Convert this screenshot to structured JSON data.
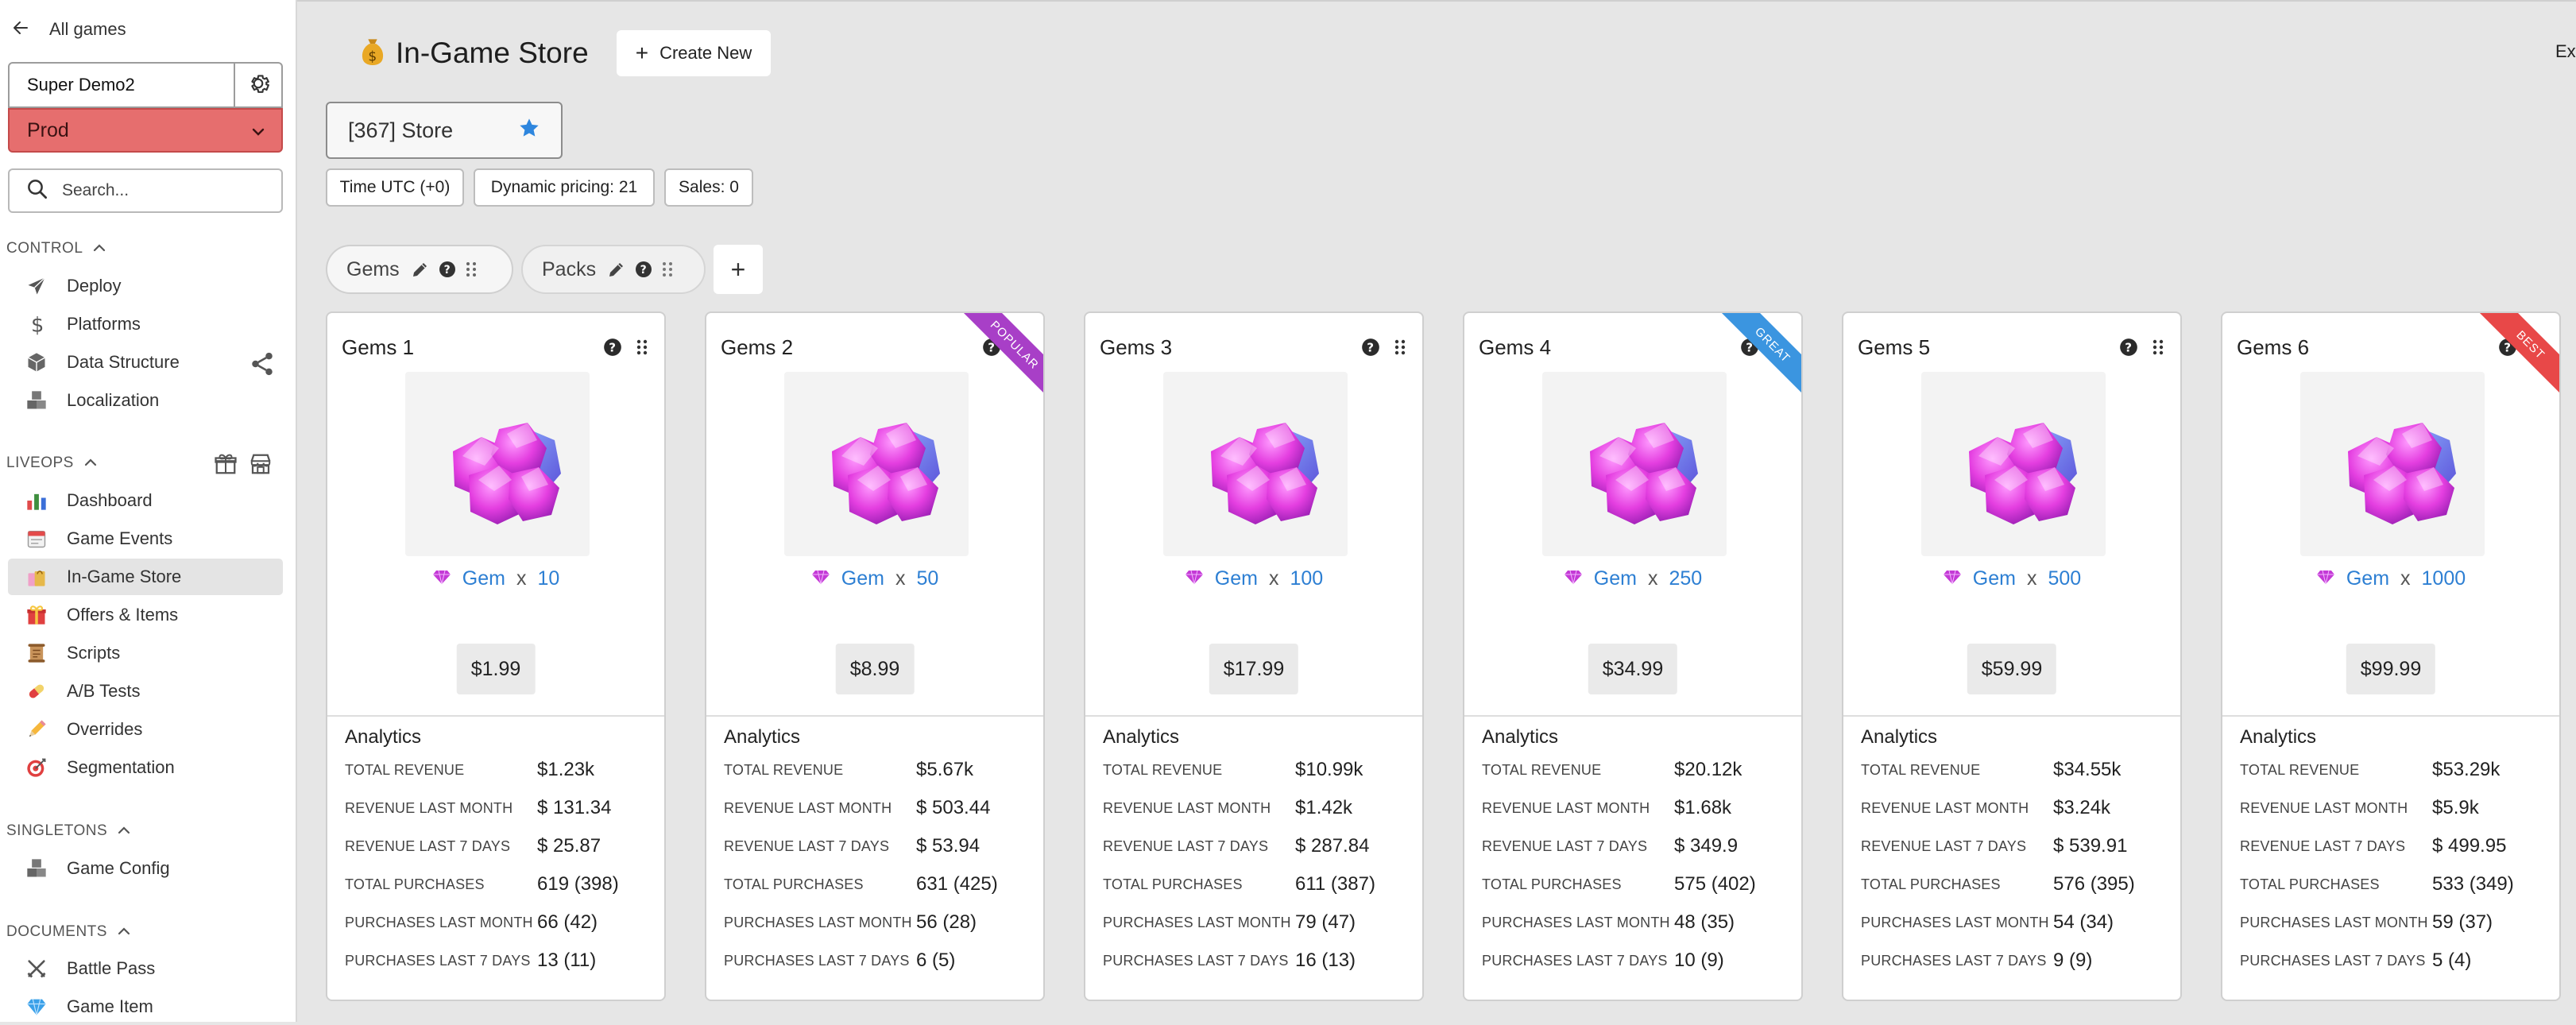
{
  "sidebar": {
    "back_label": "All games",
    "game_name": "Super Demo2",
    "environment": "Prod",
    "search_placeholder": "Search...",
    "sections": [
      {
        "label": "CONTROL",
        "items": [
          "Deploy",
          "Platforms",
          "Data Structure",
          "Localization"
        ]
      },
      {
        "label": "LIVEOPS",
        "items": [
          "Dashboard",
          "Game Events",
          "In-Game Store",
          "Offers & Items",
          "Scripts",
          "A/B Tests",
          "Overrides",
          "Segmentation"
        ]
      },
      {
        "label": "SINGLETONS",
        "items": [
          "Game Config"
        ]
      },
      {
        "label": "DOCUMENTS",
        "items": [
          "Battle Pass",
          "Game Item"
        ]
      }
    ],
    "active_item": "In-Game Store"
  },
  "header": {
    "icon": "money-bag-icon",
    "title": "In-Game Store",
    "create_label": "Create New",
    "ext_text": "Ext"
  },
  "store_select": "[367] Store",
  "pills": [
    "Time UTC (+0)",
    "Dynamic pricing: 21",
    "Sales: 0"
  ],
  "tabs": [
    {
      "label": "Gems",
      "active": true
    },
    {
      "label": "Packs",
      "active": false
    }
  ],
  "analytics_labels": {
    "heading": "Analytics",
    "total_revenue": "TOTAL REVENUE",
    "revenue_last_month": "REVENUE LAST MONTH",
    "revenue_last_7_days": "REVENUE LAST 7 DAYS",
    "total_purchases": "TOTAL PURCHASES",
    "purchases_last_month": "PURCHASES LAST MONTH",
    "purchases_last_7_days": "PURCHASES LAST 7 DAYS"
  },
  "cards": [
    {
      "name": "Gems 1",
      "currency": "Gem",
      "amount": "10",
      "price": "$1.99",
      "ribbon": null,
      "analytics": {
        "total_revenue": "$1.23k",
        "revenue_last_month": "$ 131.34",
        "revenue_last_7_days": "$ 25.87",
        "total_purchases": "619 (398)",
        "purchases_last_month": "66 (42)",
        "purchases_last_7_days": "13 (11)"
      }
    },
    {
      "name": "Gems 2",
      "currency": "Gem",
      "amount": "50",
      "price": "$8.99",
      "ribbon": {
        "text": "POPULAR",
        "color": "#a83fc7"
      },
      "analytics": {
        "total_revenue": "$5.67k",
        "revenue_last_month": "$ 503.44",
        "revenue_last_7_days": "$ 53.94",
        "total_purchases": "631 (425)",
        "purchases_last_month": "56 (28)",
        "purchases_last_7_days": "6 (5)"
      }
    },
    {
      "name": "Gems 3",
      "currency": "Gem",
      "amount": "100",
      "price": "$17.99",
      "ribbon": null,
      "analytics": {
        "total_revenue": "$10.99k",
        "revenue_last_month": "$1.42k",
        "revenue_last_7_days": "$ 287.84",
        "total_purchases": "611 (387)",
        "purchases_last_month": "79 (47)",
        "purchases_last_7_days": "16 (13)"
      }
    },
    {
      "name": "Gems 4",
      "currency": "Gem",
      "amount": "250",
      "price": "$34.99",
      "ribbon": {
        "text": "GREAT",
        "color": "#3b95e0"
      },
      "analytics": {
        "total_revenue": "$20.12k",
        "revenue_last_month": "$1.68k",
        "revenue_last_7_days": "$ 349.9",
        "total_purchases": "575 (402)",
        "purchases_last_month": "48 (35)",
        "purchases_last_7_days": "10 (9)"
      }
    },
    {
      "name": "Gems 5",
      "currency": "Gem",
      "amount": "500",
      "price": "$59.99",
      "ribbon": null,
      "analytics": {
        "total_revenue": "$34.55k",
        "revenue_last_month": "$3.24k",
        "revenue_last_7_days": "$ 539.91",
        "total_purchases": "576 (395)",
        "purchases_last_month": "54 (34)",
        "purchases_last_7_days": "9 (9)"
      }
    },
    {
      "name": "Gems 6",
      "currency": "Gem",
      "amount": "1000",
      "price": "$99.99",
      "ribbon": {
        "text": "BEST",
        "color": "#e84848"
      },
      "analytics": {
        "total_revenue": "$53.29k",
        "revenue_last_month": "$5.9k",
        "revenue_last_7_days": "$ 499.95",
        "total_purchases": "533 (349)",
        "purchases_last_month": "59 (37)",
        "purchases_last_7_days": "5 (4)"
      }
    }
  ]
}
